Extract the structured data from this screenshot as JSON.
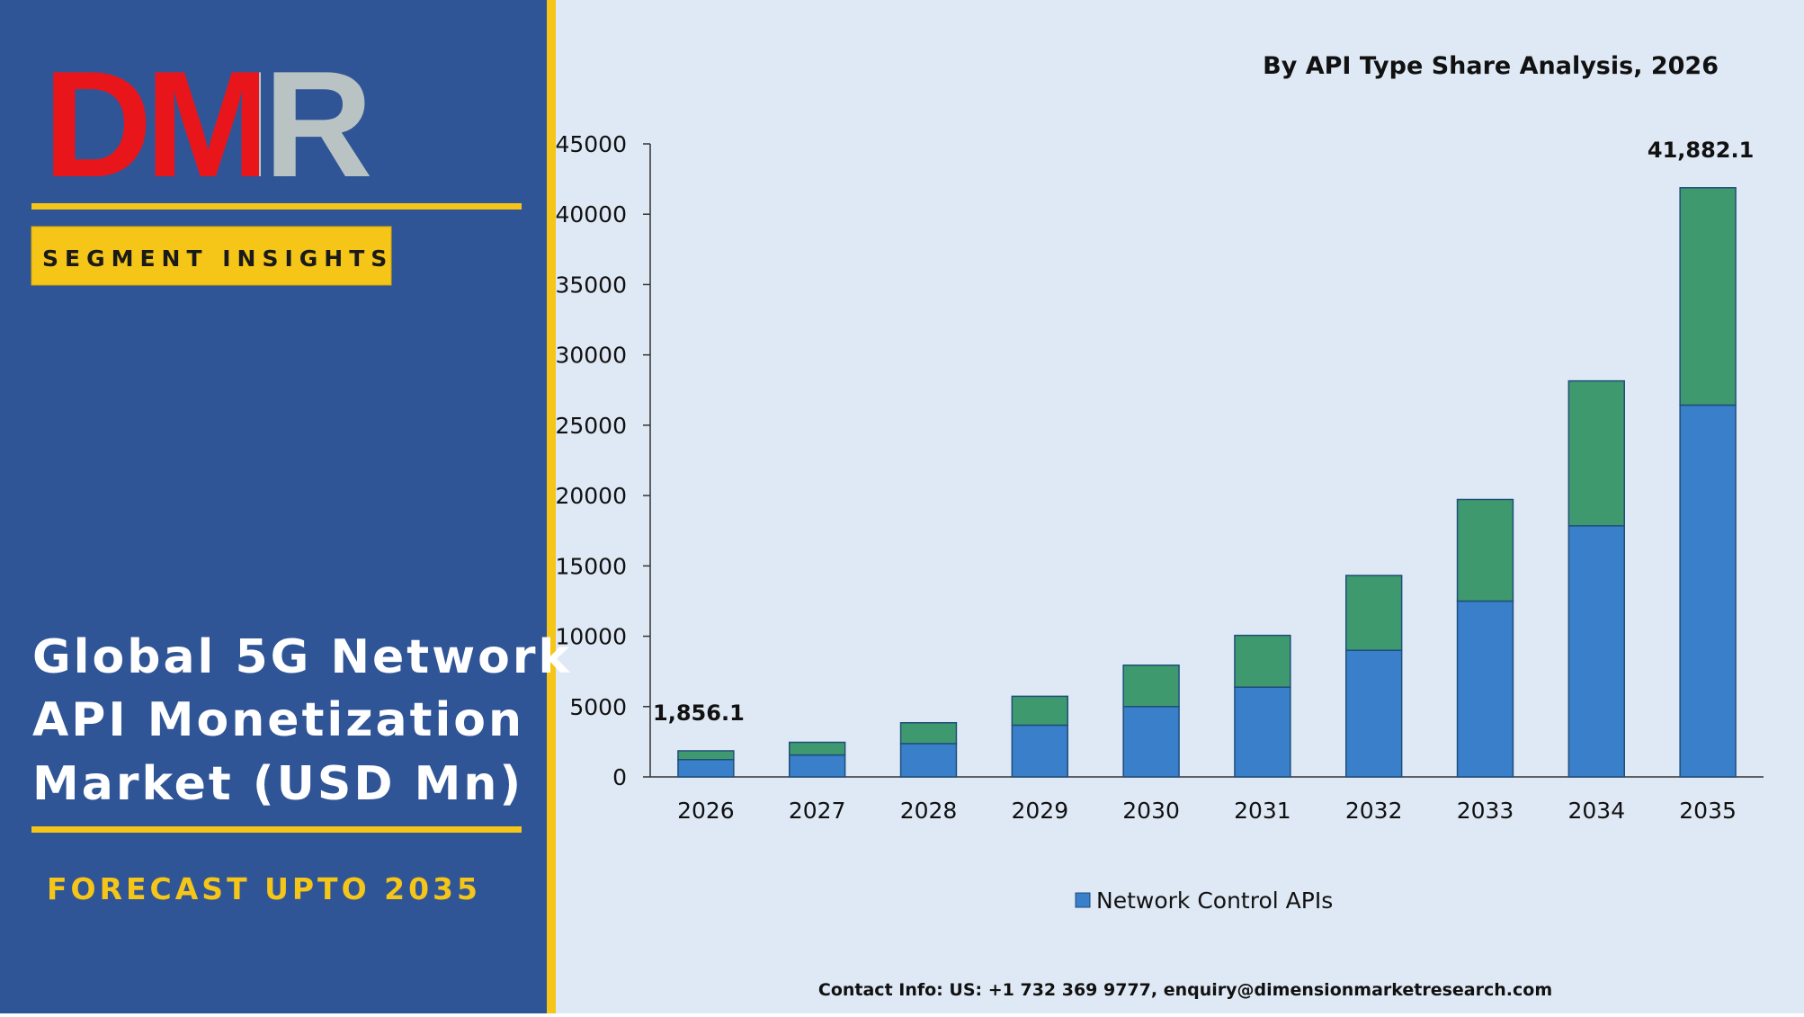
{
  "logo": "DMR",
  "badge": "SEGMENT INSIGHTS",
  "heading": [
    "Global 5G Network",
    "API Monetization",
    "Market (USD Mn)"
  ],
  "forecast": "FORECAST UPTO 2035",
  "contact": "Contact Info: US: +1 732 369 9777, enquiry@dimensionmarketresearch.com",
  "chart_data": {
    "type": "stacked_bar",
    "title": "By API Type Share Analysis, 2026",
    "categories": [
      "2026",
      "2027",
      "2028",
      "2029",
      "2030",
      "2031",
      "2032",
      "2033",
      "2034",
      "2035"
    ],
    "series": [
      {
        "name": "Network Control APIs",
        "color": "#3a7fc9",
        "values": [
          1230,
          1560,
          2370,
          3680,
          5000,
          6380,
          9000,
          12500,
          17850,
          26430
        ]
      },
      {
        "color": "#3e9a6e",
        "values": [
          626.1,
          900,
          1480,
          2050,
          2940,
          3680,
          5320,
          7220,
          10300,
          15452.1
        ]
      }
    ],
    "ylim": [
      0,
      45000
    ],
    "yticks": [
      0,
      5000,
      10000,
      15000,
      20000,
      25000,
      30000,
      35000,
      40000,
      45000
    ],
    "annotations": [
      {
        "x": "2026",
        "y": 1856.1,
        "text": "1,856.1"
      },
      {
        "x": "2035",
        "y": 41882.1,
        "text": "41,882.1"
      }
    ]
  }
}
